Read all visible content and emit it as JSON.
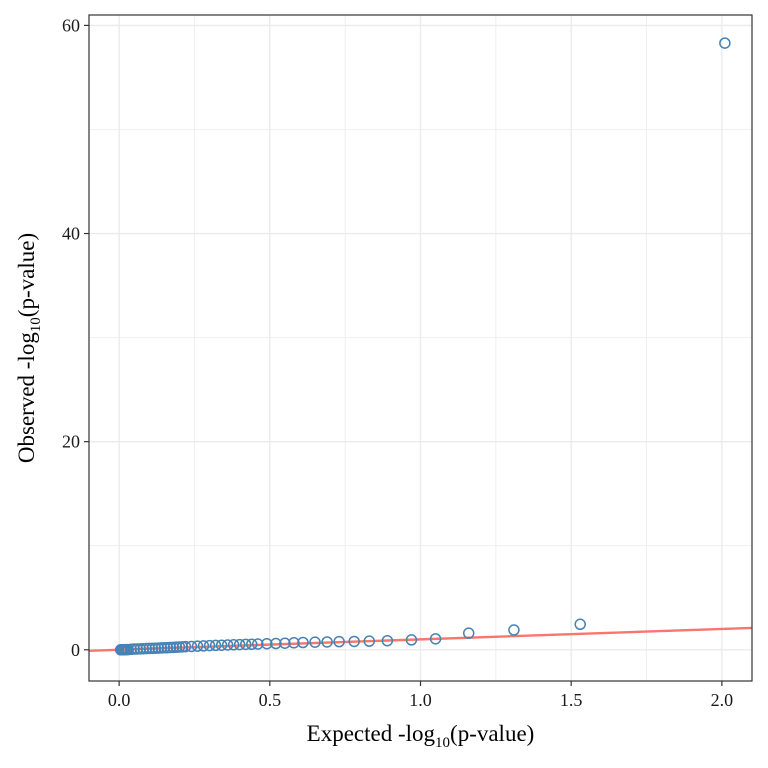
{
  "chart_data": {
    "type": "scatter",
    "title": "",
    "xlabel": {
      "prefix": "Expected -log",
      "sub": "10",
      "suffix": "(p-value)"
    },
    "ylabel": {
      "prefix": "Observed -log",
      "sub": "10",
      "suffix": "(p-value)"
    },
    "xlim": [
      -0.1,
      2.1
    ],
    "ylim": [
      -3,
      61
    ],
    "x_ticks": [
      0.0,
      0.5,
      1.0,
      1.5,
      2.0
    ],
    "x_tick_labels": [
      "0.0",
      "0.5",
      "1.0",
      "1.5",
      "2.0"
    ],
    "y_ticks": [
      0,
      20,
      40,
      60
    ],
    "y_tick_labels": [
      "0",
      "20",
      "40",
      "60"
    ],
    "grid": true,
    "legend": "none",
    "colors": {
      "points": "#4682b4",
      "reference_line": "#f8766d",
      "grid": "#ebebeb",
      "panel_border": "#333333"
    },
    "reference_line": {
      "slope": 1,
      "intercept": 0
    },
    "points": {
      "x": [
        0.005,
        0.01,
        0.015,
        0.02,
        0.025,
        0.03,
        0.04,
        0.05,
        0.06,
        0.07,
        0.08,
        0.09,
        0.1,
        0.11,
        0.12,
        0.13,
        0.14,
        0.15,
        0.16,
        0.17,
        0.18,
        0.19,
        0.2,
        0.21,
        0.22,
        0.24,
        0.26,
        0.28,
        0.3,
        0.32,
        0.34,
        0.36,
        0.38,
        0.4,
        0.42,
        0.44,
        0.46,
        0.49,
        0.52,
        0.55,
        0.58,
        0.61,
        0.65,
        0.69,
        0.73,
        0.78,
        0.83,
        0.89,
        0.97,
        1.05,
        1.16,
        1.31,
        1.53,
        2.01
      ],
      "y": [
        0.0,
        0.0,
        0.0,
        0.01,
        0.02,
        0.02,
        0.05,
        0.07,
        0.08,
        0.09,
        0.1,
        0.12,
        0.13,
        0.14,
        0.15,
        0.16,
        0.18,
        0.2,
        0.2,
        0.22,
        0.23,
        0.25,
        0.27,
        0.28,
        0.3,
        0.32,
        0.35,
        0.37,
        0.4,
        0.42,
        0.44,
        0.46,
        0.48,
        0.5,
        0.52,
        0.53,
        0.55,
        0.58,
        0.6,
        0.63,
        0.67,
        0.7,
        0.73,
        0.75,
        0.78,
        0.8,
        0.83,
        0.87,
        0.95,
        1.05,
        1.6,
        1.9,
        2.45,
        58.3
      ]
    }
  }
}
